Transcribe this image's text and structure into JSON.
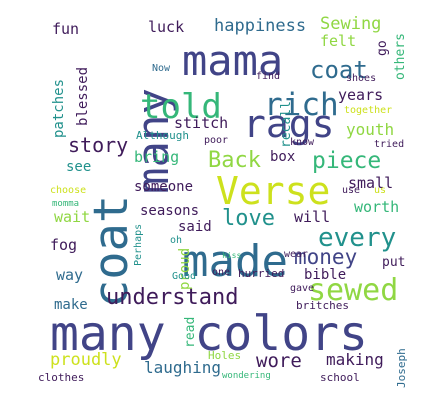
{
  "colors": {
    "background": "#ffffff",
    "dark_purple": "#3f1b5a",
    "indigo": "#414487",
    "blue": "#2f6b8e",
    "teal": "#21918c",
    "green": "#35b779",
    "lime": "#90d743",
    "yellow": "#cde11d"
  },
  "words": [
    {
      "text": "many colors"
    },
    {
      "text": "coat"
    },
    {
      "text": "many"
    },
    {
      "text": "mama"
    },
    {
      "text": "made"
    },
    {
      "text": "Verse"
    },
    {
      "text": "rags"
    },
    {
      "text": "told"
    },
    {
      "text": "rich"
    },
    {
      "text": "sewed"
    },
    {
      "text": "every"
    },
    {
      "text": "understand"
    },
    {
      "text": "Back"
    },
    {
      "text": "piece"
    },
    {
      "text": "love"
    },
    {
      "text": "money"
    },
    {
      "text": "coat"
    },
    {
      "text": "story"
    },
    {
      "text": "happiness"
    },
    {
      "text": "Sewing"
    },
    {
      "text": "wore"
    },
    {
      "text": "proudly"
    },
    {
      "text": "laughing"
    },
    {
      "text": "making"
    },
    {
      "text": "proud"
    },
    {
      "text": "patches"
    },
    {
      "text": "blessed"
    },
    {
      "text": "fun"
    },
    {
      "text": "luck"
    },
    {
      "text": "felt"
    },
    {
      "text": "go"
    },
    {
      "text": "others"
    },
    {
      "text": "years"
    },
    {
      "text": "stitch"
    },
    {
      "text": "recall"
    },
    {
      "text": "youth"
    },
    {
      "text": "bring"
    },
    {
      "text": "box"
    },
    {
      "text": "small"
    },
    {
      "text": "someone"
    },
    {
      "text": "seasons"
    },
    {
      "text": "said"
    },
    {
      "text": "will"
    },
    {
      "text": "worth"
    },
    {
      "text": "bible"
    },
    {
      "text": "wait"
    },
    {
      "text": "fog"
    },
    {
      "text": "way"
    },
    {
      "text": "make"
    },
    {
      "text": "read"
    },
    {
      "text": "see"
    },
    {
      "text": "put"
    },
    {
      "text": "Now"
    },
    {
      "text": "find"
    },
    {
      "text": "shoes"
    },
    {
      "text": "together"
    },
    {
      "text": "Although"
    },
    {
      "text": "poor"
    },
    {
      "text": "know"
    },
    {
      "text": "tried"
    },
    {
      "text": "choose"
    },
    {
      "text": "momma"
    },
    {
      "text": "use"
    },
    {
      "text": "us"
    },
    {
      "text": "Perhaps"
    },
    {
      "text": "oh"
    },
    {
      "text": "kiss"
    },
    {
      "text": "wear"
    },
    {
      "text": "Good"
    },
    {
      "text": "one"
    },
    {
      "text": "hurried"
    },
    {
      "text": "gave"
    },
    {
      "text": "britches"
    },
    {
      "text": "Holes"
    },
    {
      "text": "clothes"
    },
    {
      "text": "wondering"
    },
    {
      "text": "school"
    },
    {
      "text": "Joseph"
    }
  ]
}
